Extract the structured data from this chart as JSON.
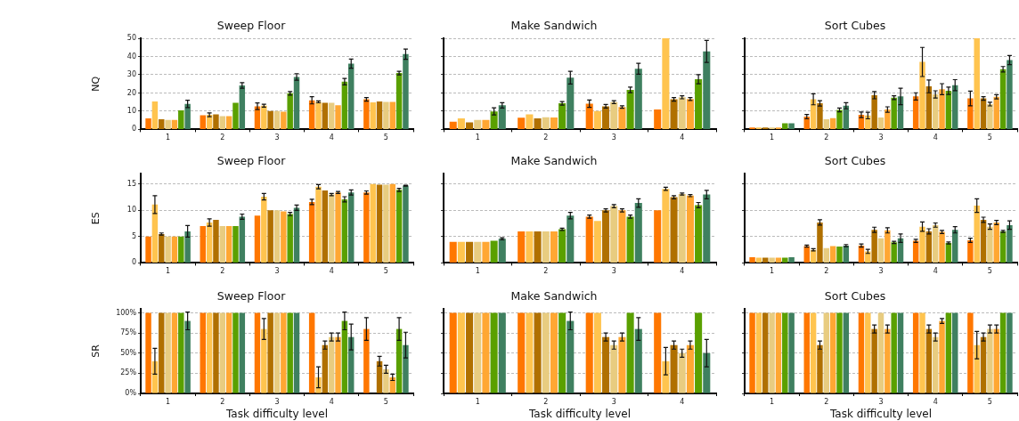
{
  "chart_data": [
    {
      "type": "bar",
      "title": "Sweep Floor",
      "ylabel": "NQ",
      "categories": [
        "1",
        "2",
        "3",
        "4",
        "5"
      ],
      "ylim": [
        0,
        50
      ],
      "yticks": [
        0,
        10,
        20,
        30,
        40,
        50
      ],
      "grid": "y",
      "series": [
        {
          "color": "#ff7700",
          "values": [
            6,
            7.8,
            12.7,
            16,
            16.5
          ],
          "errors": [
            null,
            null,
            1.8,
            2,
            1
          ]
        },
        {
          "color": "#ffc44f",
          "values": [
            15.3,
            8,
            13,
            15.1,
            14.8
          ],
          "errors": [
            null,
            1,
            0.8,
            0.5,
            null
          ]
        },
        {
          "color": "#b07000",
          "values": [
            5.6,
            8.3,
            10.1,
            14.6,
            15.3
          ],
          "errors": [
            null,
            null,
            null,
            null,
            null
          ]
        },
        {
          "color": "#e8cc80",
          "values": [
            5.2,
            7.3,
            10.1,
            14.6,
            15.1
          ],
          "errors": [
            null,
            null,
            null,
            null,
            null
          ]
        },
        {
          "color": "#ffa733",
          "values": [
            5.2,
            7.3,
            9.7,
            13.2,
            15.1
          ],
          "errors": [
            null,
            null,
            null,
            null,
            null
          ]
        },
        {
          "color": "#5aa000",
          "values": [
            10.4,
            14.6,
            19.8,
            26.2,
            30.9
          ],
          "errors": [
            null,
            null,
            1,
            1.8,
            1
          ]
        },
        {
          "color": "#3f8060",
          "values": [
            14,
            24.1,
            28.8,
            36.1,
            41.3
          ],
          "errors": [
            2,
            1.5,
            1.8,
            2.5,
            2.8
          ]
        }
      ]
    },
    {
      "type": "bar",
      "title": "Make Sandwich",
      "categories": [
        "1",
        "2",
        "3",
        "4"
      ],
      "ylim": [
        0,
        50
      ],
      "yticks": [
        0,
        10,
        20,
        30,
        40,
        50
      ],
      "grid": "y",
      "tick_labels": "x",
      "series": [
        {
          "color": "#ff7700",
          "values": [
            4.2,
            6.4,
            14.1,
            10.9
          ],
          "errors": [
            null,
            null,
            2,
            null
          ]
        },
        {
          "color": "#ffc44f",
          "values": [
            6.1,
            8.2,
            10.1,
            50
          ],
          "errors": [
            null,
            null,
            null,
            null
          ]
        },
        {
          "color": "#b07000",
          "values": [
            3.8,
            6,
            12.7,
            16.5
          ],
          "errors": [
            null,
            null,
            1,
            1
          ]
        },
        {
          "color": "#e8cc80",
          "values": [
            5.2,
            6.7,
            15,
            17.6
          ],
          "errors": [
            null,
            null,
            0.8,
            0.8
          ]
        },
        {
          "color": "#ffa733",
          "values": [
            5.2,
            6.5,
            12.3,
            16.7
          ],
          "errors": [
            null,
            null,
            0.7,
            0.8
          ]
        },
        {
          "color": "#5aa000",
          "values": [
            9.9,
            14.3,
            21.7,
            27.5
          ],
          "errors": [
            2,
            1,
            1.5,
            2.5
          ]
        },
        {
          "color": "#3f8060",
          "values": [
            13.2,
            28.4,
            33.3,
            42.8
          ],
          "errors": [
            1.5,
            3.5,
            3,
            6
          ]
        }
      ]
    },
    {
      "type": "bar",
      "title": "Sort Cubes",
      "categories": [
        "1",
        "2",
        "3",
        "4",
        "5"
      ],
      "ylim": [
        0,
        50
      ],
      "yticks": [
        0,
        10,
        20,
        30,
        40,
        50
      ],
      "grid": "y",
      "tick_labels": "x",
      "series": [
        {
          "color": "#ff7700",
          "values": [
            1.1,
            7,
            8,
            18.1,
            17
          ],
          "errors": [
            null,
            1.2,
            1.5,
            2,
            4
          ]
        },
        {
          "color": "#ffc44f",
          "values": [
            1.1,
            16.5,
            7.6,
            37,
            50
          ],
          "errors": [
            null,
            3,
            1.8,
            8,
            null
          ]
        },
        {
          "color": "#b07000",
          "values": [
            1.1,
            14.3,
            18.8,
            23.6,
            17
          ],
          "errors": [
            null,
            1.5,
            2,
            3.5,
            1
          ]
        },
        {
          "color": "#e8cc80",
          "values": [
            1.1,
            5.6,
            6.5,
            19.2,
            13.9
          ],
          "errors": [
            null,
            null,
            null,
            2,
            1
          ]
        },
        {
          "color": "#ffa733",
          "values": [
            1.1,
            6.2,
            10.9,
            22.1,
            17.9
          ],
          "errors": [
            null,
            null,
            1.5,
            3,
            1.2
          ]
        },
        {
          "color": "#5aa000",
          "values": [
            3.4,
            10.7,
            17.4,
            21.2,
            33
          ],
          "errors": [
            null,
            1,
            1,
            2,
            1.5
          ]
        },
        {
          "color": "#3f8060",
          "values": [
            3.4,
            13,
            18.1,
            24.3,
            38
          ],
          "errors": [
            null,
            1.7,
            4.5,
            3,
            2.5
          ]
        }
      ]
    },
    {
      "type": "bar",
      "title": "Sweep Floor",
      "ylabel": "ES",
      "categories": [
        "1",
        "2",
        "3",
        "4",
        "5"
      ],
      "ylim": [
        0,
        17
      ],
      "yticks": [
        0,
        5,
        10,
        15
      ],
      "grid": "y",
      "series": [
        {
          "color": "#ff7700",
          "values": [
            5,
            7,
            9,
            11.6,
            13.4
          ],
          "errors": [
            null,
            null,
            null,
            0.5,
            0.3
          ]
        },
        {
          "color": "#ffc44f",
          "values": [
            11.1,
            7.7,
            12.6,
            14.5,
            15
          ],
          "errors": [
            1.7,
            0.7,
            0.6,
            0.4,
            null
          ]
        },
        {
          "color": "#b07000",
          "values": [
            5.5,
            8.2,
            10,
            13.8,
            14.9
          ],
          "errors": [
            0.2,
            null,
            null,
            null,
            null
          ]
        },
        {
          "color": "#e8cc80",
          "values": [
            5,
            7,
            10,
            13,
            14.9
          ],
          "errors": [
            null,
            null,
            null,
            0.2,
            null
          ]
        },
        {
          "color": "#ffa733",
          "values": [
            5,
            7,
            9.8,
            13.4,
            15
          ],
          "errors": [
            null,
            null,
            null,
            0.2,
            null
          ]
        },
        {
          "color": "#5aa000",
          "values": [
            5,
            7,
            9.3,
            12.1,
            13.9
          ],
          "errors": [
            null,
            null,
            0.3,
            0.5,
            0.3
          ]
        },
        {
          "color": "#3f8060",
          "values": [
            6,
            8.8,
            10.5,
            13.4,
            14.7
          ],
          "errors": [
            1.1,
            0.5,
            0.5,
            0.5,
            0.1
          ]
        }
      ]
    },
    {
      "type": "bar",
      "title": "Make Sandwich",
      "categories": [
        "1",
        "2",
        "3",
        "4"
      ],
      "ylim": [
        0,
        17
      ],
      "yticks": [
        0,
        5,
        10,
        15
      ],
      "grid": "y",
      "tick_labels": "x",
      "series": [
        {
          "color": "#ff7700",
          "values": [
            4,
            6,
            8.8,
            10
          ],
          "errors": [
            null,
            null,
            0.3,
            null
          ]
        },
        {
          "color": "#ffc44f",
          "values": [
            4,
            6,
            8,
            14.1
          ],
          "errors": [
            null,
            null,
            null,
            0.3
          ]
        },
        {
          "color": "#b07000",
          "values": [
            4,
            6,
            10,
            12.5
          ],
          "errors": [
            null,
            null,
            0.3,
            0.3
          ]
        },
        {
          "color": "#e8cc80",
          "values": [
            4,
            6,
            10.8,
            13.1
          ],
          "errors": [
            null,
            null,
            0.3,
            0.2
          ]
        },
        {
          "color": "#ffa733",
          "values": [
            4,
            6,
            10,
            12.8
          ],
          "errors": [
            null,
            null,
            0.3,
            0.2
          ]
        },
        {
          "color": "#5aa000",
          "values": [
            4.2,
            6.4,
            8.8,
            11
          ],
          "errors": [
            null,
            0.2,
            0.3,
            0.5
          ]
        },
        {
          "color": "#3f8060",
          "values": [
            4.6,
            9,
            11.4,
            13
          ],
          "errors": [
            0.2,
            0.6,
            0.8,
            0.8
          ]
        }
      ]
    },
    {
      "type": "bar",
      "title": "Sort Cubes",
      "categories": [
        "1",
        "2",
        "3",
        "4",
        "5"
      ],
      "ylim": [
        0,
        17
      ],
      "yticks": [
        0,
        5,
        10,
        15
      ],
      "grid": "y",
      "tick_labels": "x",
      "series": [
        {
          "color": "#ff7700",
          "values": [
            1.1,
            3.2,
            3.3,
            4.2,
            4.3
          ],
          "errors": [
            null,
            0.2,
            0.3,
            0.3,
            0.4
          ]
        },
        {
          "color": "#ffc44f",
          "values": [
            1,
            2.5,
            2.2,
            6.9,
            10.9
          ],
          "errors": [
            null,
            0.2,
            0.4,
            0.9,
            1.3
          ]
        },
        {
          "color": "#b07000",
          "values": [
            1,
            7.7,
            6.3,
            6,
            8.2
          ],
          "errors": [
            null,
            0.5,
            0.5,
            0.5,
            0.5
          ]
        },
        {
          "color": "#e8cc80",
          "values": [
            1,
            2.8,
            4.7,
            7.2,
            6.9
          ],
          "errors": [
            null,
            null,
            null,
            0.4,
            0.5
          ]
        },
        {
          "color": "#ffa733",
          "values": [
            1,
            3.2,
            6.2,
            5.9,
            7.7
          ],
          "errors": [
            null,
            null,
            0.5,
            0.3,
            0.4
          ]
        },
        {
          "color": "#5aa000",
          "values": [
            1,
            3.1,
            3.9,
            3.8,
            6
          ],
          "errors": [
            null,
            null,
            0.2,
            0.2,
            0.2
          ]
        },
        {
          "color": "#3f8060",
          "values": [
            1.1,
            3.3,
            4.7,
            6.3,
            7.2
          ],
          "errors": [
            null,
            0.2,
            0.8,
            0.6,
            0.8
          ]
        }
      ]
    },
    {
      "type": "bar",
      "title": "Sweep Floor",
      "ylabel": "SR",
      "xlabel": "Task difficulty level",
      "categories": [
        "1",
        "2",
        "3",
        "4",
        "5"
      ],
      "ylim": [
        0,
        105
      ],
      "yticks": [
        {
          "value": 0,
          "label": "0%"
        },
        {
          "value": 25,
          "label": "25%"
        },
        {
          "value": 50,
          "label": "50%"
        },
        {
          "value": 75,
          "label": "75%"
        },
        {
          "value": 100,
          "label": "100%"
        }
      ],
      "grid": "y",
      "series": [
        {
          "color": "#ff7700",
          "values": [
            100,
            100,
            100,
            100,
            80
          ],
          "errors": [
            null,
            null,
            null,
            null,
            14
          ]
        },
        {
          "color": "#ffc44f",
          "values": [
            40,
            100,
            80,
            20,
            0
          ],
          "errors": [
            16,
            null,
            13,
            13,
            null
          ]
        },
        {
          "color": "#b07000",
          "values": [
            100,
            100,
            100,
            60,
            40
          ],
          "errors": [
            null,
            null,
            null,
            5,
            6
          ]
        },
        {
          "color": "#e8cc80",
          "values": [
            100,
            100,
            100,
            70,
            30
          ],
          "errors": [
            null,
            null,
            null,
            5,
            5
          ]
        },
        {
          "color": "#ffa733",
          "values": [
            100,
            100,
            100,
            70,
            20
          ],
          "errors": [
            null,
            null,
            null,
            5,
            4
          ]
        },
        {
          "color": "#5aa000",
          "values": [
            100,
            100,
            100,
            90,
            80
          ],
          "errors": [
            null,
            null,
            null,
            11,
            14
          ]
        },
        {
          "color": "#3f8060",
          "values": [
            90,
            100,
            100,
            70,
            60
          ],
          "errors": [
            11,
            null,
            null,
            16,
            16
          ]
        }
      ]
    },
    {
      "type": "bar",
      "title": "Make Sandwich",
      "xlabel": "Task difficulty level",
      "categories": [
        "1",
        "2",
        "3",
        "4"
      ],
      "ylim": [
        0,
        105
      ],
      "yticks": [
        0,
        25,
        50,
        75,
        100
      ],
      "grid": "y",
      "tick_labels": "x",
      "series": [
        {
          "color": "#ff7700",
          "values": [
            100,
            100,
            100,
            100
          ],
          "errors": [
            null,
            null,
            null,
            null
          ]
        },
        {
          "color": "#ffc44f",
          "values": [
            100,
            100,
            100,
            40
          ],
          "errors": [
            null,
            null,
            null,
            17
          ]
        },
        {
          "color": "#b07000",
          "values": [
            100,
            100,
            70,
            60
          ],
          "errors": [
            null,
            null,
            5,
            5
          ]
        },
        {
          "color": "#e8cc80",
          "values": [
            100,
            100,
            60,
            50
          ],
          "errors": [
            null,
            null,
            5,
            5
          ]
        },
        {
          "color": "#ffa733",
          "values": [
            100,
            100,
            70,
            60
          ],
          "errors": [
            null,
            null,
            5,
            5
          ]
        },
        {
          "color": "#5aa000",
          "values": [
            100,
            100,
            100,
            100
          ],
          "errors": [
            null,
            null,
            null,
            null
          ]
        },
        {
          "color": "#3f8060",
          "values": [
            100,
            90,
            80,
            50
          ],
          "errors": [
            null,
            11,
            14,
            17
          ]
        }
      ]
    },
    {
      "type": "bar",
      "title": "Sort Cubes",
      "xlabel": "Task difficulty level",
      "categories": [
        "1",
        "2",
        "3",
        "4",
        "5"
      ],
      "ylim": [
        0,
        105
      ],
      "yticks": [
        0,
        25,
        50,
        75,
        100
      ],
      "grid": "y",
      "tick_labels": "x",
      "series": [
        {
          "color": "#ff7700",
          "values": [
            100,
            100,
            100,
            100,
            100
          ],
          "errors": [
            null,
            null,
            null,
            null,
            null
          ]
        },
        {
          "color": "#ffc44f",
          "values": [
            100,
            100,
            100,
            100,
            60
          ],
          "errors": [
            null,
            null,
            null,
            null,
            17
          ]
        },
        {
          "color": "#b07000",
          "values": [
            100,
            60,
            80,
            80,
            70
          ],
          "errors": [
            null,
            5,
            5,
            5,
            5
          ]
        },
        {
          "color": "#e8cc80",
          "values": [
            100,
            100,
            100,
            70,
            80
          ],
          "errors": [
            null,
            null,
            null,
            5,
            5
          ]
        },
        {
          "color": "#ffa733",
          "values": [
            100,
            100,
            80,
            90,
            80
          ],
          "errors": [
            null,
            null,
            5,
            3,
            5
          ]
        },
        {
          "color": "#5aa000",
          "values": [
            100,
            100,
            100,
            100,
            100
          ],
          "errors": [
            null,
            null,
            null,
            null,
            null
          ]
        },
        {
          "color": "#3f8060",
          "values": [
            100,
            100,
            100,
            100,
            100
          ],
          "errors": [
            null,
            null,
            null,
            null,
            null
          ]
        }
      ]
    }
  ]
}
